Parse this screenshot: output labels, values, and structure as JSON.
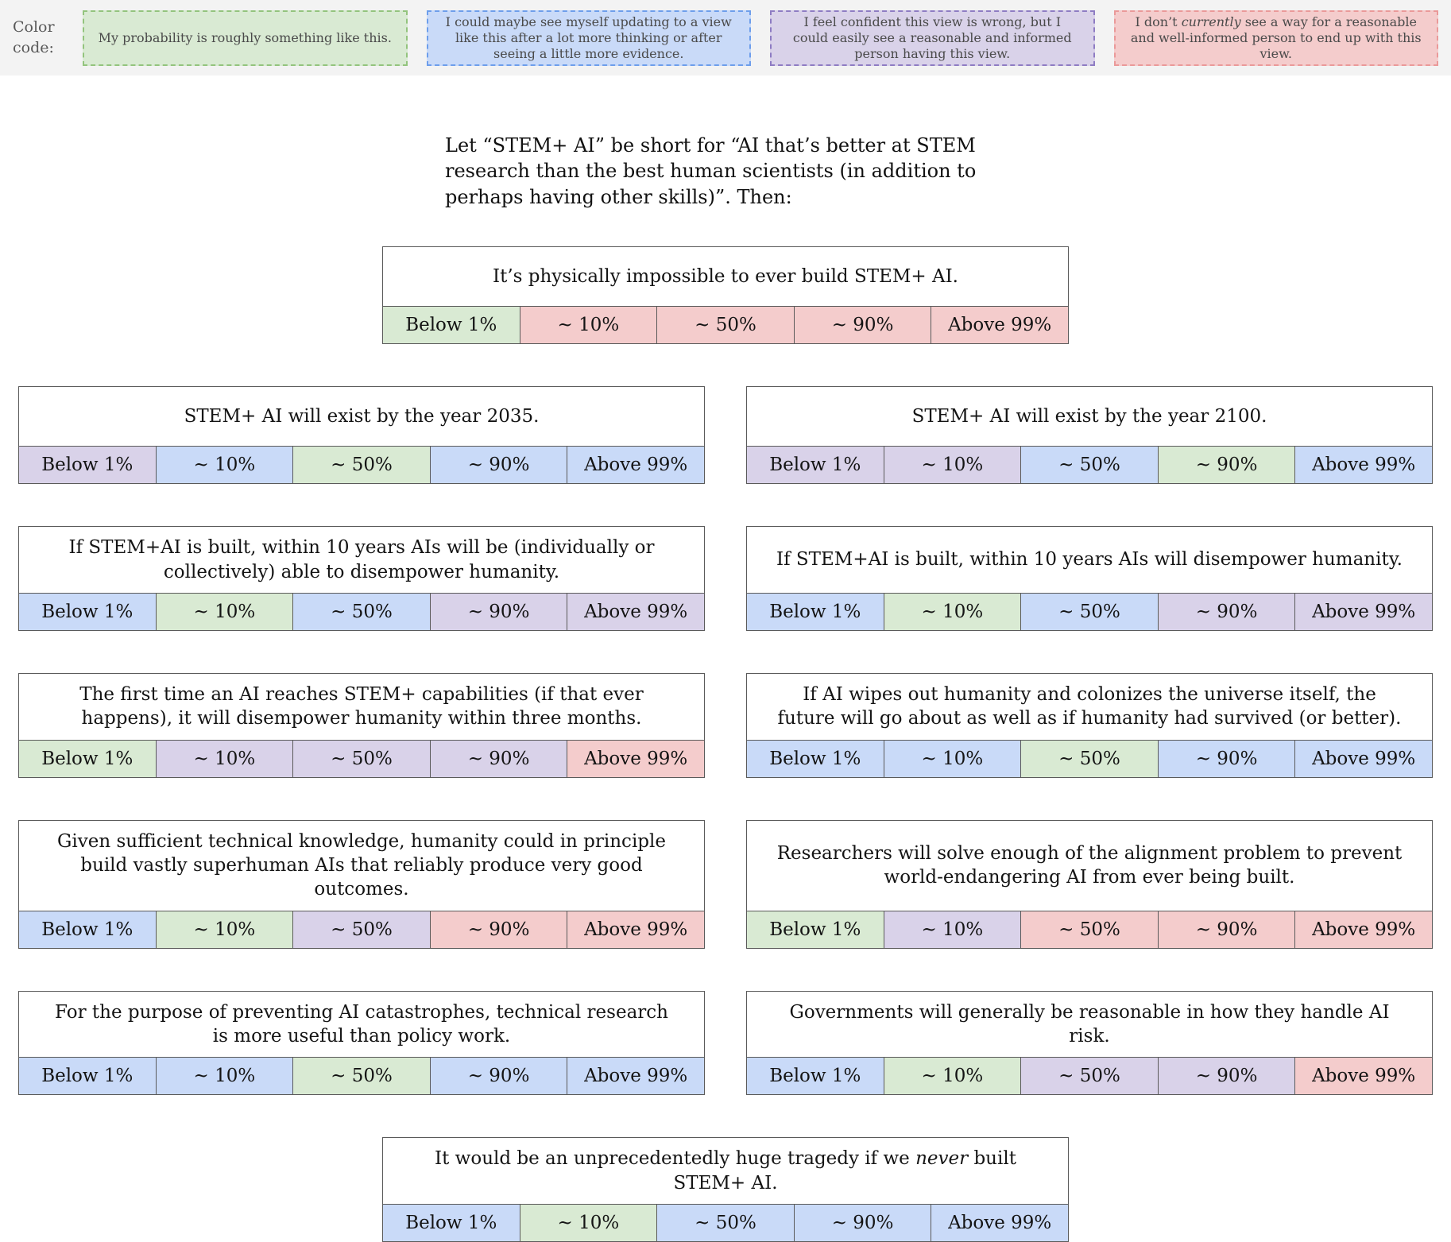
{
  "colors": {
    "green": "#d9ead3",
    "blue": "#c9daf8",
    "purple": "#d9d2e9",
    "red": "#f4cccc",
    "green-border": "#93c47d",
    "blue-border": "#6d9eeb",
    "purple-border": "#8e7cc3",
    "red-border": "#ea9999"
  },
  "legend": {
    "label": "Color code:",
    "items": [
      {
        "code": "green",
        "text": "My probability is roughly something like this."
      },
      {
        "code": "blue",
        "text": "I could maybe see myself updating to a view like this after a lot more thinking or after seeing a little more evidence."
      },
      {
        "code": "purple",
        "text": "I feel confident this view is wrong, but I could easily see a reasonable and informed person having this view."
      },
      {
        "code": "red",
        "pre": "I don’t ",
        "italic": "currently",
        "post": " see a way for a reasonable and well-informed person to end up with this view."
      }
    ]
  },
  "intro": "Let “STEM+ AI” be short for “AI that’s better at STEM research than the best human scientists (in addition to perhaps having other skills)”. Then:",
  "scale": [
    "Below 1%",
    "~ 10%",
    "~ 50%",
    "~ 90%",
    "Above 99%"
  ],
  "boxes": [
    {
      "title": "It’s physically impossible to ever build STEM+ AI.",
      "cells": [
        "green",
        "red",
        "red",
        "red",
        "red"
      ]
    },
    {
      "title": "STEM+ AI will exist by the year 2035.",
      "cells": [
        "purple",
        "blue",
        "green",
        "blue",
        "blue"
      ]
    },
    {
      "title": "STEM+ AI will exist by the year 2100.",
      "cells": [
        "purple",
        "purple",
        "blue",
        "green",
        "blue"
      ]
    },
    {
      "title": "If STEM+AI is built, within 10 years AIs will be (individually or collectively) able to disempower humanity.",
      "cells": [
        "blue",
        "green",
        "blue",
        "purple",
        "purple"
      ]
    },
    {
      "title": "If STEM+AI is built, within 10 years AIs will disempower humanity.",
      "cells": [
        "blue",
        "green",
        "blue",
        "purple",
        "purple"
      ]
    },
    {
      "title": "The first time an AI reaches STEM+ capabilities (if that ever happens), it will disempower humanity within three months.",
      "cells": [
        "green",
        "purple",
        "purple",
        "purple",
        "red"
      ]
    },
    {
      "title": "If AI wipes out humanity and colonizes the universe itself, the future will go about as well as if humanity had survived (or better).",
      "cells": [
        "blue",
        "blue",
        "green",
        "blue",
        "blue"
      ]
    },
    {
      "title": "Given sufficient technical knowledge, humanity could in principle build vastly superhuman AIs that reliably produce very good outcomes.",
      "cells": [
        "blue",
        "green",
        "purple",
        "red",
        "red"
      ]
    },
    {
      "title": "Researchers will solve enough of the alignment problem to prevent world-endangering AI from ever being built.",
      "cells": [
        "green",
        "purple",
        "red",
        "red",
        "red"
      ]
    },
    {
      "title": "For the purpose of preventing AI catastrophes, technical research is more useful than policy work.",
      "cells": [
        "blue",
        "blue",
        "green",
        "blue",
        "blue"
      ]
    },
    {
      "title": "Governments will generally be reasonable in how they handle AI risk.",
      "cells": [
        "blue",
        "green",
        "purple",
        "purple",
        "red"
      ]
    },
    {
      "title_pre": "It would be an unprecedentedly huge tragedy if we ",
      "title_italic": "never",
      "title_post": " built STEM+ AI.",
      "cells": [
        "blue",
        "green",
        "blue",
        "blue",
        "blue"
      ]
    }
  ]
}
